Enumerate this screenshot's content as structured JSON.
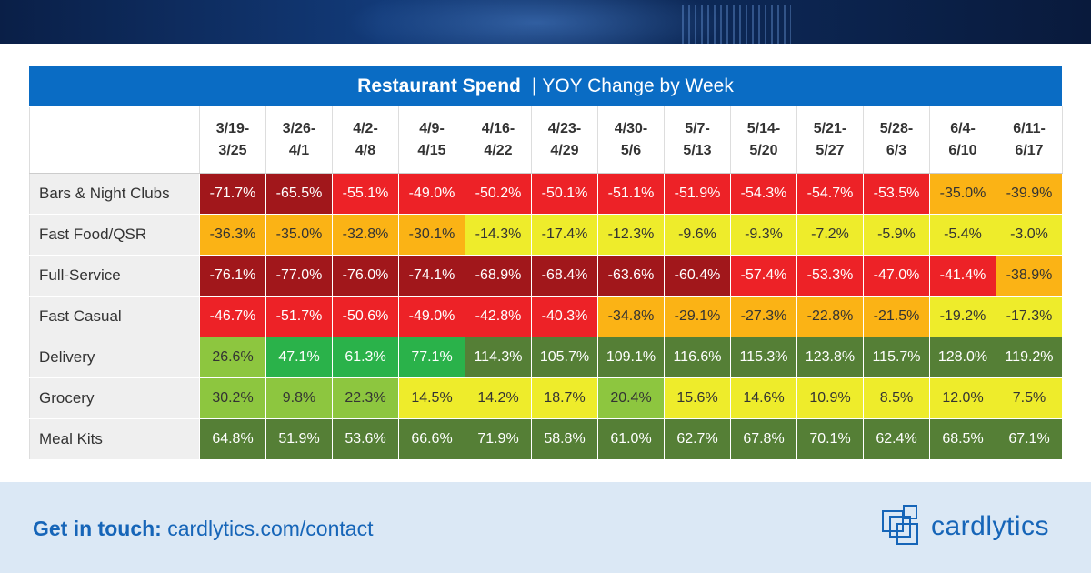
{
  "title": {
    "bold": "Restaurant Spend",
    "separator": "|",
    "rest": "YOY Change by Week"
  },
  "footer": {
    "cta_bold": "Get in touch:",
    "cta_link": "cardlytics.com/contact",
    "brand": "cardlytics"
  },
  "colors": {
    "title_bar": "#0a6cc4",
    "dark_red": "#a1171b",
    "red": "#ed2227",
    "orange": "#fbb315",
    "yellow": "#eeec2b",
    "light_green": "#8dc63f",
    "green": "#2ab24a",
    "dark_green": "#557f36"
  },
  "chart_data": {
    "type": "table",
    "title": "Restaurant Spend | YOY Change by Week",
    "columns": [
      [
        "3/19-",
        "3/25"
      ],
      [
        "3/26-",
        "4/1"
      ],
      [
        "4/2-",
        "4/8"
      ],
      [
        "4/9-",
        "4/15"
      ],
      [
        "4/16-",
        "4/22"
      ],
      [
        "4/23-",
        "4/29"
      ],
      [
        "4/30-",
        "5/6"
      ],
      [
        "5/7-",
        "5/13"
      ],
      [
        "5/14-",
        "5/20"
      ],
      [
        "5/21-",
        "5/27"
      ],
      [
        "5/28-",
        "6/3"
      ],
      [
        "6/4-",
        "6/10"
      ],
      [
        "6/11-",
        "6/17"
      ]
    ],
    "rows": [
      {
        "label": "Bars & Night Clubs",
        "values": [
          "-71.7%",
          "-65.5%",
          "-55.1%",
          "-49.0%",
          "-50.2%",
          "-50.1%",
          "-51.1%",
          "-51.9%",
          "-54.3%",
          "-54.7%",
          "-53.5%",
          "-35.0%",
          "-39.9%"
        ],
        "tiers": [
          "dark_red",
          "dark_red",
          "red",
          "red",
          "red",
          "red",
          "red",
          "red",
          "red",
          "red",
          "red",
          "orange",
          "orange"
        ]
      },
      {
        "label": "Fast Food/QSR",
        "values": [
          "-36.3%",
          "-35.0%",
          "-32.8%",
          "-30.1%",
          "-14.3%",
          "-17.4%",
          "-12.3%",
          "-9.6%",
          "-9.3%",
          "-7.2%",
          "-5.9%",
          "-5.4%",
          "-3.0%"
        ],
        "tiers": [
          "orange",
          "orange",
          "orange",
          "orange",
          "yellow",
          "yellow",
          "yellow",
          "yellow",
          "yellow",
          "yellow",
          "yellow",
          "yellow",
          "yellow"
        ]
      },
      {
        "label": "Full-Service",
        "values": [
          "-76.1%",
          "-77.0%",
          "-76.0%",
          "-74.1%",
          "-68.9%",
          "-68.4%",
          "-63.6%",
          "-60.4%",
          "-57.4%",
          "-53.3%",
          "-47.0%",
          "-41.4%",
          "-38.9%"
        ],
        "tiers": [
          "dark_red",
          "dark_red",
          "dark_red",
          "dark_red",
          "dark_red",
          "dark_red",
          "dark_red",
          "dark_red",
          "red",
          "red",
          "red",
          "red",
          "orange"
        ]
      },
      {
        "label": "Fast Casual",
        "values": [
          "-46.7%",
          "-51.7%",
          "-50.6%",
          "-49.0%",
          "-42.8%",
          "-40.3%",
          "-34.8%",
          "-29.1%",
          "-27.3%",
          "-22.8%",
          "-21.5%",
          "-19.2%",
          "-17.3%"
        ],
        "tiers": [
          "red",
          "red",
          "red",
          "red",
          "red",
          "red",
          "orange",
          "orange",
          "orange",
          "orange",
          "orange",
          "yellow",
          "yellow"
        ]
      },
      {
        "label": "Delivery",
        "values": [
          "26.6%",
          "47.1%",
          "61.3%",
          "77.1%",
          "114.3%",
          "105.7%",
          "109.1%",
          "116.6%",
          "115.3%",
          "123.8%",
          "115.7%",
          "128.0%",
          "119.2%"
        ],
        "tiers": [
          "light_green",
          "green",
          "green",
          "green",
          "dark_green",
          "dark_green",
          "dark_green",
          "dark_green",
          "dark_green",
          "dark_green",
          "dark_green",
          "dark_green",
          "dark_green"
        ]
      },
      {
        "label": "Grocery",
        "values": [
          "30.2%",
          "9.8%",
          "22.3%",
          "14.5%",
          "14.2%",
          "18.7%",
          "20.4%",
          "15.6%",
          "14.6%",
          "10.9%",
          "8.5%",
          "12.0%",
          "7.5%"
        ],
        "tiers": [
          "light_green",
          "light_green",
          "light_green",
          "yellow",
          "yellow",
          "yellow",
          "light_green",
          "yellow",
          "yellow",
          "yellow",
          "yellow",
          "yellow",
          "yellow"
        ]
      },
      {
        "label": "Meal Kits",
        "values": [
          "64.8%",
          "51.9%",
          "53.6%",
          "66.6%",
          "71.9%",
          "58.8%",
          "61.0%",
          "62.7%",
          "67.8%",
          "70.1%",
          "62.4%",
          "68.5%",
          "67.1%"
        ],
        "tiers": [
          "dark_green",
          "dark_green",
          "dark_green",
          "dark_green",
          "dark_green",
          "dark_green",
          "dark_green",
          "dark_green",
          "dark_green",
          "dark_green",
          "dark_green",
          "dark_green",
          "dark_green"
        ]
      }
    ]
  }
}
